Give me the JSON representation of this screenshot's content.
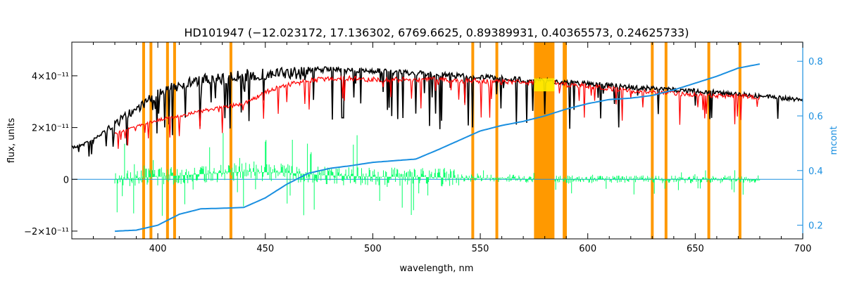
{
  "chart_data": {
    "type": "line",
    "title": "HD101947   (−12.023172, 17.136302, 6769.6625, 0.89389931, 0.40365573, 0.24625733)",
    "xlabel": "wavelength, nm",
    "ylabel": "flux, units",
    "y2label": "mcont",
    "xlim": [
      360,
      700
    ],
    "ylim": [
      -2.3e-11,
      5.3e-11
    ],
    "y2lim": [
      0.15,
      0.87
    ],
    "x_ticks": [
      "400",
      "450",
      "500",
      "550",
      "600",
      "650",
      "700"
    ],
    "x_tick_values": [
      400,
      450,
      500,
      550,
      600,
      650,
      700
    ],
    "y_ticks": [
      "−2×10⁻¹¹",
      "0",
      "2×10⁻¹¹",
      "4×10⁻¹¹"
    ],
    "y_tick_values": [
      -2e-11,
      0,
      2e-11,
      4e-11
    ],
    "y2_ticks": [
      "0.2",
      "0.4",
      "0.6",
      "0.8"
    ],
    "y2_tick_values": [
      0.2,
      0.4,
      0.6,
      0.8
    ],
    "masked_lines_nm": [
      393.4,
      396.8,
      404.5,
      407.8,
      434.0,
      546.5,
      557.7,
      589.0,
      589.6,
      630.0,
      636.4,
      656.3,
      670.8
    ],
    "masked_band_nm": [
      575.0,
      584.5
    ],
    "series": [
      {
        "color": "#000000",
        "x": [
          360,
          370,
          380,
          390,
          400,
          410,
          420,
          430,
          440,
          450,
          460,
          470,
          480,
          490,
          500,
          510,
          520,
          530,
          540,
          550,
          560,
          570,
          580,
          590,
          600,
          610,
          620,
          630,
          640,
          650,
          660,
          670,
          680,
          690,
          700
        ],
        "values": [
          1.3e-11,
          1.6e-11,
          2.3e-11,
          2.9e-11,
          3.5e-11,
          3.9e-11,
          4.05e-11,
          4.15e-11,
          4.25e-11,
          4.3e-11,
          4.35e-11,
          4.35e-11,
          4.35e-11,
          4.3e-11,
          4.3e-11,
          4.25e-11,
          4.2e-11,
          4.15e-11,
          4.1e-11,
          4.05e-11,
          4e-11,
          3.95e-11,
          3.9e-11,
          3.85e-11,
          3.8e-11,
          3.72e-11,
          3.65e-11,
          3.6e-11,
          3.55e-11,
          3.5e-11,
          3.45e-11,
          3.38e-11,
          3.3e-11,
          3.22e-11,
          3.15e-11
        ]
      },
      {
        "color": "#ff0000",
        "x": [
          380,
          390,
          400,
          410,
          420,
          430,
          440,
          450,
          460,
          470,
          480,
          490,
          500,
          510,
          520,
          530,
          540,
          550,
          560,
          570,
          580,
          590,
          600,
          610,
          620,
          630,
          640,
          650,
          660,
          670,
          680
        ],
        "values": [
          1.8e-11,
          2.1e-11,
          2.35e-11,
          2.5e-11,
          2.7e-11,
          2.85e-11,
          3e-11,
          3.45e-11,
          3.75e-11,
          3.9e-11,
          4e-11,
          4e-11,
          3.95e-11,
          3.95e-11,
          3.95e-11,
          3.95e-11,
          3.9e-11,
          3.9e-11,
          3.85e-11,
          3.85e-11,
          3.8e-11,
          3.75e-11,
          3.7e-11,
          3.6e-11,
          3.5e-11,
          3.45e-11,
          3.4e-11,
          3.35e-11,
          3.3e-11,
          3.3e-11,
          3.25e-11
        ]
      },
      {
        "color": "#00ff66",
        "x": [
          380,
          400,
          420,
          440,
          460,
          480,
          500,
          520,
          540,
          560,
          575,
          585,
          600,
          620,
          640,
          660,
          680
        ],
        "values": [
          0,
          1e-12,
          2e-12,
          3e-12,
          2.5e-12,
          1.5e-12,
          1e-12,
          1e-12,
          5e-13,
          5e-13,
          0,
          0,
          0,
          0,
          0,
          0,
          0
        ]
      },
      {
        "color": "#1a8fe0",
        "axis": "right",
        "x": [
          380,
          390,
          400,
          410,
          420,
          430,
          440,
          450,
          460,
          470,
          480,
          490,
          500,
          510,
          520,
          530,
          540,
          550,
          560,
          570,
          580,
          590,
          600,
          610,
          620,
          630,
          640,
          650,
          660,
          670,
          680
        ],
        "values": [
          0.178,
          0.182,
          0.2,
          0.24,
          0.26,
          0.262,
          0.265,
          0.3,
          0.35,
          0.39,
          0.408,
          0.418,
          0.43,
          0.436,
          0.442,
          0.475,
          0.51,
          0.545,
          0.565,
          0.58,
          0.6,
          0.625,
          0.645,
          0.66,
          0.665,
          0.675,
          0.695,
          0.72,
          0.745,
          0.775,
          0.79
        ]
      }
    ]
  }
}
